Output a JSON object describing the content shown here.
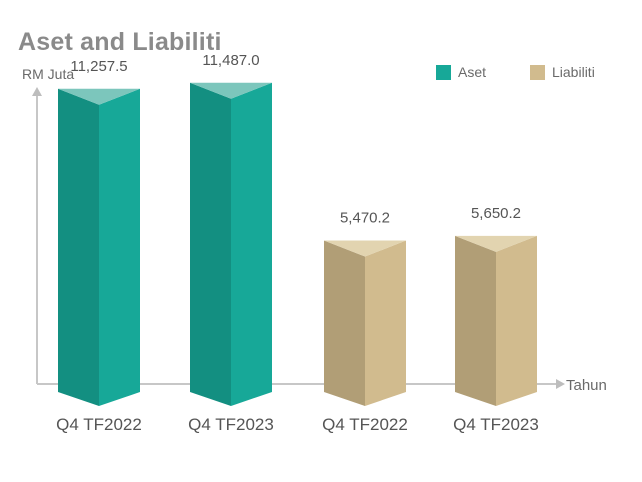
{
  "chart_data": {
    "type": "bar",
    "title": "Aset and Liabiliti",
    "ylabel": "RM Juta",
    "xlabel": "Tahun",
    "categories": [
      "Q4 TF2022",
      "Q4 TF2023",
      "Q4 TF2022",
      "Q4 TF2023"
    ],
    "series": [
      {
        "name": "Aset",
        "values": [
          11257.5,
          11487.0,
          null,
          null
        ]
      },
      {
        "name": "Liabiliti",
        "values": [
          null,
          null,
          5470.2,
          5650.2
        ]
      }
    ],
    "value_labels": [
      "11,257.5",
      "11,487.0",
      "5,470.2",
      "5,650.2"
    ],
    "ylim": [
      0,
      13500
    ],
    "grid": false,
    "legend_position": "top-right",
    "colors": {
      "Aset": {
        "front": "#17a898",
        "side": "#138f81",
        "top": "#7cc6bc"
      },
      "Liabiliti": {
        "front": "#d1bb8e",
        "side": "#b19e76",
        "top": "#e2d4b0"
      }
    }
  }
}
